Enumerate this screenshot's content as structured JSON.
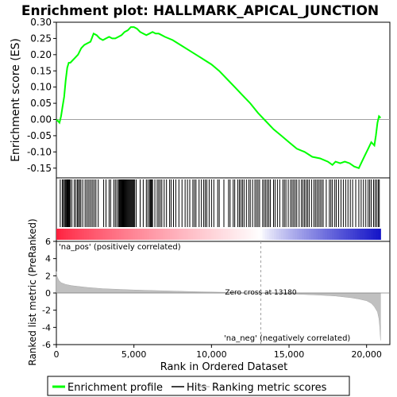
{
  "title": "Enrichment plot: HALLMARK_APICAL_JUNCTION",
  "colors": {
    "enrichment_line": "#00ff00",
    "hits": "#000000",
    "metric_fill": "#c0c0c0",
    "pos_label": "#cc0000",
    "neg_label": "#0000cc",
    "zero_cross_line": "#a0a0a0"
  },
  "chart_data": [
    {
      "type": "line",
      "panel": "enrichment-profile",
      "ylabel": "Enrichment score (ES)",
      "ylim": [
        -0.18,
        0.3
      ],
      "xlim": [
        0,
        21500
      ],
      "yticks": [
        -0.15,
        -0.1,
        -0.05,
        0.0,
        0.05,
        0.1,
        0.15,
        0.2,
        0.25,
        0.3
      ],
      "ytick_labels": [
        "-0.15",
        "-0.10",
        "-0.05",
        "0.00",
        "0.05",
        "0.10",
        "0.15",
        "0.20",
        "0.25",
        "0.30"
      ],
      "grid": false,
      "series": [
        {
          "name": "Enrichment profile",
          "x": [
            0,
            100,
            200,
            300,
            400,
            500,
            600,
            700,
            800,
            900,
            1000,
            1200,
            1400,
            1600,
            1800,
            2000,
            2200,
            2400,
            2600,
            2800,
            3000,
            3200,
            3400,
            3600,
            3800,
            4000,
            4200,
            4400,
            4600,
            4800,
            5000,
            5200,
            5400,
            5600,
            5800,
            6000,
            6200,
            6400,
            6600,
            6800,
            7000,
            7500,
            8000,
            8500,
            9000,
            9500,
            10000,
            10500,
            11000,
            11500,
            12000,
            12500,
            13000,
            13500,
            14000,
            14500,
            15000,
            15500,
            16000,
            16500,
            17000,
            17500,
            17800,
            18000,
            18300,
            18600,
            18900,
            19200,
            19500,
            19700,
            19900,
            20100,
            20300,
            20500,
            20600,
            20700,
            20800,
            20900
          ],
          "y": [
            0.0,
            -0.005,
            -0.01,
            0.01,
            0.04,
            0.07,
            0.12,
            0.16,
            0.175,
            0.175,
            0.18,
            0.19,
            0.2,
            0.22,
            0.23,
            0.235,
            0.24,
            0.265,
            0.26,
            0.25,
            0.245,
            0.25,
            0.255,
            0.25,
            0.25,
            0.255,
            0.26,
            0.27,
            0.275,
            0.285,
            0.285,
            0.28,
            0.27,
            0.265,
            0.26,
            0.265,
            0.27,
            0.265,
            0.265,
            0.26,
            0.255,
            0.245,
            0.23,
            0.215,
            0.2,
            0.185,
            0.17,
            0.15,
            0.125,
            0.1,
            0.075,
            0.05,
            0.02,
            -0.005,
            -0.03,
            -0.05,
            -0.07,
            -0.09,
            -0.1,
            -0.115,
            -0.12,
            -0.13,
            -0.14,
            -0.13,
            -0.135,
            -0.13,
            -0.135,
            -0.145,
            -0.15,
            -0.13,
            -0.11,
            -0.09,
            -0.07,
            -0.08,
            -0.05,
            -0.01,
            0.01,
            0.005
          ]
        }
      ]
    },
    {
      "type": "scatter",
      "panel": "hits",
      "series": [
        {
          "name": "Hits",
          "x": [
            250,
            380,
            450,
            520,
            580,
            630,
            680,
            720,
            760,
            800,
            850,
            900,
            1000,
            1150,
            1250,
            1350,
            1420,
            1500,
            1580,
            1700,
            1850,
            1950,
            2050,
            2150,
            2250,
            2350,
            2450,
            2550,
            2700,
            3050,
            3200,
            3400,
            3500,
            3700,
            3800,
            3900,
            4000,
            4050,
            4100,
            4150,
            4200,
            4250,
            4300,
            4350,
            4400,
            4450,
            4500,
            4550,
            4600,
            4650,
            4700,
            4750,
            4800,
            4850,
            4900,
            4950,
            5000,
            5050,
            5150,
            5400,
            5600,
            5800,
            5900,
            6000,
            6050,
            6100,
            6150,
            6200,
            6350,
            6500,
            6600,
            6700,
            6800,
            6950,
            7100,
            7300,
            7400,
            7550,
            7700,
            7900,
            8100,
            8300,
            8450,
            8600,
            8800,
            8900,
            9000,
            9200,
            9350,
            9500,
            9600,
            9700,
            9850,
            10000,
            10150,
            10400,
            10500,
            10800,
            11100,
            11200,
            11400,
            11500,
            11700,
            11800,
            11900,
            12000,
            12100,
            12250,
            12400,
            12500,
            12650,
            12800,
            12900,
            13000,
            13100,
            13300,
            13400,
            13500,
            13600,
            13700,
            13800,
            14000,
            14100,
            14250,
            14400,
            14600,
            14700,
            14800,
            14950,
            15100,
            15200,
            15300,
            15400,
            15500,
            15650,
            15800,
            15900,
            16000,
            16100,
            16200,
            16300,
            16450,
            16600,
            16700,
            16800,
            16900,
            17000,
            17100,
            17200,
            17400,
            17600,
            17700,
            17800,
            17950,
            18050,
            18200,
            18350,
            18500,
            18650,
            18800,
            18950,
            19100,
            19300,
            19500,
            19650,
            19800,
            19950,
            20100,
            20200,
            20300,
            20450,
            20550,
            20650,
            20750,
            20820
          ]
        }
      ]
    },
    {
      "type": "area",
      "panel": "ranked-metric",
      "xlabel": "Rank in Ordered Dataset",
      "ylabel": "Ranked list metric (PreRanked)",
      "ylim": [
        -6,
        6
      ],
      "xlim": [
        0,
        21500
      ],
      "xticks": [
        0,
        5000,
        10000,
        15000,
        20000
      ],
      "xtick_labels": [
        "0",
        "5,000",
        "10,000",
        "15,000",
        "20,000"
      ],
      "yticks": [
        -6,
        -4,
        -2,
        0,
        2,
        4,
        6
      ],
      "ytick_labels": [
        "-6",
        "-4",
        "-2",
        "0",
        "2",
        "4",
        "6"
      ],
      "grid": false,
      "zero_cross": 13180,
      "zero_cross_label": "Zero cross at 13180",
      "pos_label": "'na_pos' (positively correlated)",
      "neg_label": "'na_neg' (negatively correlated)",
      "series": [
        {
          "name": "Ranking metric scores",
          "x": [
            0,
            50,
            150,
            300,
            600,
            1000,
            2000,
            3000,
            5000,
            7000,
            9000,
            11000,
            13180,
            15000,
            17000,
            18000,
            19000,
            19500,
            20000,
            20300,
            20500,
            20700,
            20800,
            20850,
            20900
          ],
          "y": [
            2.5,
            1.9,
            1.5,
            1.2,
            1.0,
            0.85,
            0.65,
            0.5,
            0.35,
            0.25,
            0.15,
            0.07,
            0.0,
            -0.1,
            -0.25,
            -0.35,
            -0.55,
            -0.7,
            -0.9,
            -1.2,
            -1.6,
            -2.2,
            -3.0,
            -4.0,
            -5.5
          ]
        }
      ]
    }
  ],
  "legend": {
    "placement": "bottom",
    "items": [
      {
        "label": "Enrichment profile",
        "kind": "line-green"
      },
      {
        "label": "Hits",
        "kind": "line-black"
      },
      {
        "label": "Ranking metric scores",
        "kind": "line-gray"
      }
    ]
  }
}
